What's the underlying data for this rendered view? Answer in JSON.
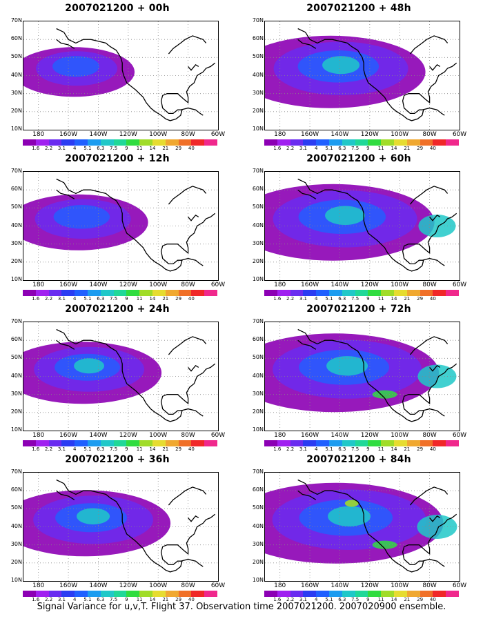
{
  "caption": "Signal Variance for u,v,T. Flight 37. Observation time 2007021200. 2007020900 ensemble.",
  "axes": {
    "lat_labels": [
      "70N",
      "60N",
      "50N",
      "40N",
      "30N",
      "20N",
      "10N"
    ],
    "lon_labels": [
      "180",
      "160W",
      "140W",
      "120W",
      "100W",
      "80W",
      "60W"
    ]
  },
  "colorbar": {
    "labels": [
      "1.6",
      "2.2",
      "3.1",
      "4",
      "5.1",
      "6.3",
      "7.5",
      "9",
      "11",
      "14",
      "21",
      "29",
      "40"
    ],
    "colors": [
      "#8c00b4",
      "#a020f0",
      "#6a2cf0",
      "#2b3cf2",
      "#2060ff",
      "#1c9cf0",
      "#20c8c8",
      "#20d898",
      "#30dc40",
      "#a0dc28",
      "#e6dc30",
      "#f0a830",
      "#f07028",
      "#f02828",
      "#f0288c"
    ]
  },
  "panels": [
    {
      "title": "2007021200 + 00h",
      "spread": 0.2,
      "intensity": 0.35
    },
    {
      "title": "2007021200 + 48h",
      "spread": 0.75,
      "intensity": 0.6
    },
    {
      "title": "2007021200 + 12h",
      "spread": 0.35,
      "intensity": 0.45
    },
    {
      "title": "2007021200 + 60h",
      "spread": 0.85,
      "intensity": 0.62
    },
    {
      "title": "2007021200 + 24h",
      "spread": 0.5,
      "intensity": 0.5
    },
    {
      "title": "2007021200 + 72h",
      "spread": 0.9,
      "intensity": 0.72
    },
    {
      "title": "2007021200 + 36h",
      "spread": 0.6,
      "intensity": 0.55
    },
    {
      "title": "2007021200 + 84h",
      "spread": 0.95,
      "intensity": 0.8
    }
  ]
}
